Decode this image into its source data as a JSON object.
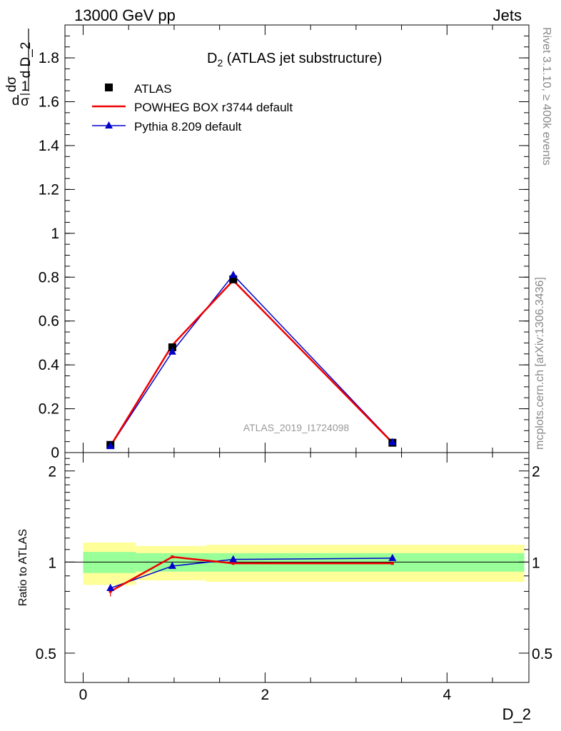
{
  "header": {
    "left": "13000 GeV pp",
    "right": "Jets"
  },
  "plot_title": {
    "main": "D",
    "sub": "2",
    "rest": " (ATLAS jet substructure)"
  },
  "watermark": "ATLAS_2019_I1724098",
  "side_labels": {
    "top": "Rivet 3.1.10, ≥ 400k events",
    "bottom": "mcplots.cern.ch [arXiv:1306.3436]"
  },
  "x_label": "D_2",
  "top_y_label": {
    "one": "1",
    "sigma": "σ",
    "d": "d",
    "dsigma": "dσ",
    "dvar": "d D_2"
  },
  "ratio_y_label": "Ratio to ATLAS",
  "legend": [
    "ATLAS",
    "POWHEG BOX r3744 default",
    "Pythia 8.209 default"
  ],
  "colors": {
    "data": "#000000",
    "powheg": "#ee0000",
    "pythia": "#0000cc",
    "band_outer": "#ffff99",
    "band_inner": "#99ff99"
  },
  "chart_data": [
    {
      "type": "line",
      "panel": "main",
      "xlim": [
        -0.2,
        4.9
      ],
      "ylim": [
        0,
        1.95
      ],
      "y_ticks": [
        0,
        0.2,
        0.4,
        0.6,
        0.8,
        1,
        1.2,
        1.4,
        1.6,
        1.8
      ],
      "y_tick_labels": [
        "0",
        "0.2",
        "0.4",
        "0.6",
        "0.8",
        "1",
        "1.2",
        "1.4",
        "1.6",
        "1.8"
      ],
      "series": [
        {
          "name": "ATLAS",
          "style": "markers",
          "x": [
            0.3,
            0.98,
            1.65,
            3.4
          ],
          "y": [
            0.035,
            0.48,
            0.79,
            0.045
          ]
        },
        {
          "name": "POWHEG BOX r3744 default",
          "style": "line",
          "x": [
            0.3,
            0.98,
            1.65,
            3.4
          ],
          "y": [
            0.03,
            0.49,
            0.785,
            0.045
          ]
        },
        {
          "name": "Pythia 8.209 default",
          "style": "line-triangles",
          "x": [
            0.3,
            0.98,
            1.65,
            3.4
          ],
          "y": [
            0.029,
            0.46,
            0.81,
            0.047
          ]
        }
      ]
    },
    {
      "type": "line",
      "panel": "ratio",
      "xlim": [
        -0.2,
        4.9
      ],
      "ylim": [
        0.4,
        2.3
      ],
      "x_ticks": [
        0,
        2,
        4
      ],
      "x_tick_labels": [
        "0",
        "2",
        "4"
      ],
      "y_ticks": [
        0.5,
        1,
        2
      ],
      "y_tick_labels": [
        "0.5",
        "1",
        "2"
      ],
      "uncertainty_bands": [
        {
          "x": [
            0.0,
            0.58
          ],
          "inner": [
            0.92,
            1.08
          ],
          "outer": [
            0.84,
            1.16
          ]
        },
        {
          "x": [
            0.58,
            1.35
          ],
          "inner": [
            0.93,
            1.07
          ],
          "outer": [
            0.87,
            1.13
          ]
        },
        {
          "x": [
            1.35,
            1.93
          ],
          "inner": [
            0.93,
            1.07
          ],
          "outer": [
            0.86,
            1.14
          ]
        },
        {
          "x": [
            1.93,
            4.85
          ],
          "inner": [
            0.93,
            1.07
          ],
          "outer": [
            0.86,
            1.14
          ]
        }
      ],
      "series": [
        {
          "name": "POWHEG BOX r3744 default",
          "x": [
            0.3,
            0.98,
            1.65,
            3.4
          ],
          "y": [
            0.8,
            1.04,
            0.99,
            0.99
          ],
          "err": [
            0.03,
            0,
            0,
            0
          ]
        },
        {
          "name": "Pythia 8.209 default",
          "x": [
            0.3,
            0.98,
            1.65,
            3.4
          ],
          "y": [
            0.82,
            0.97,
            1.02,
            1.03
          ],
          "err": [
            0.025,
            0,
            0,
            0
          ]
        }
      ]
    }
  ]
}
